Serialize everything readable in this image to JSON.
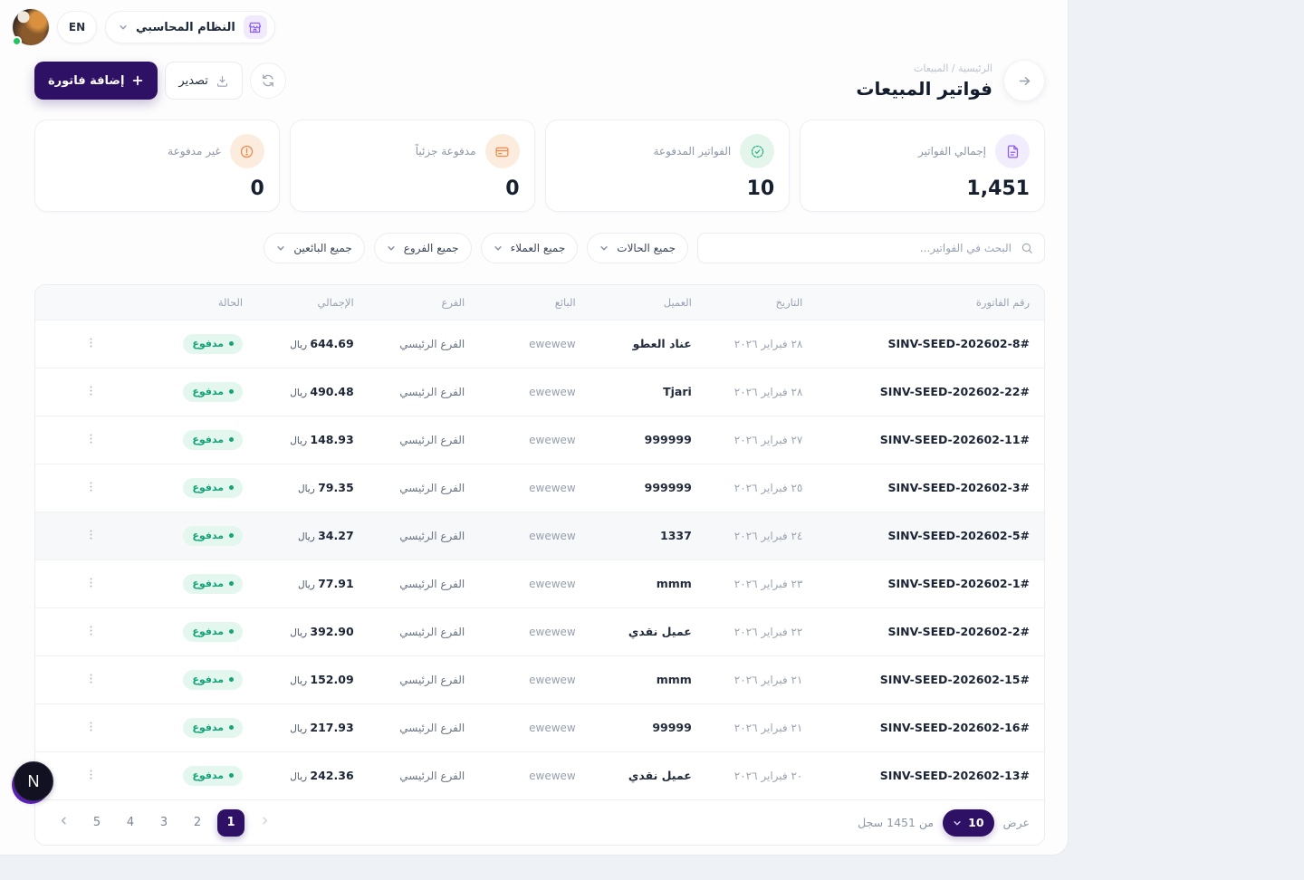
{
  "topbar": {
    "language": "EN",
    "system_name": "النظام المحاسبي"
  },
  "header": {
    "breadcrumb": "الرئيسية / المبيعات",
    "title": "فواتير المبيعات",
    "add_button": "إضافة فاتورة",
    "export_button": "تصدير"
  },
  "stats": [
    {
      "label": "إجمالي الفواتير",
      "value": "1,451",
      "icon": "invoice-icon",
      "icon_color": "#8b5cf6",
      "icon_bg": "#f2edfd"
    },
    {
      "label": "الفواتير المدفوعة",
      "value": "10",
      "icon": "check-circle-icon",
      "icon_color": "#2eb487",
      "icon_bg": "#e4f5ec"
    },
    {
      "label": "مدفوعة جزئياً",
      "value": "0",
      "icon": "credit-card-icon",
      "icon_color": "#ec8a4d",
      "icon_bg": "#fcecdd"
    },
    {
      "label": "غير مدفوعة",
      "value": "0",
      "icon": "alert-circle-icon",
      "icon_color": "#ec8a4d",
      "icon_bg": "#fcecdd"
    }
  ],
  "filters": {
    "search_placeholder": "البحث في الفواتير...",
    "dropdowns": [
      {
        "name": "filter-status",
        "label": "جميع الحالات"
      },
      {
        "name": "filter-customers",
        "label": "جميع العملاء"
      },
      {
        "name": "filter-branches",
        "label": "جميع الفروع"
      },
      {
        "name": "filter-sellers",
        "label": "جميع البائعين"
      }
    ]
  },
  "table": {
    "columns": [
      "رقم الفاتورة",
      "التاريخ",
      "العميل",
      "البائع",
      "الفرع",
      "الإجمالي",
      "الحالة"
    ],
    "currency": "ريال",
    "rows": [
      {
        "invoice": "#SINV-SEED-202602-8",
        "date": "٢٨ فبراير ٢٠٢٦",
        "customer": "عناد العطو",
        "seller": "ewewew",
        "branch": "الفرع الرئيسي",
        "total": "644.69",
        "status": "مدفوع",
        "highlight": false
      },
      {
        "invoice": "#SINV-SEED-202602-22",
        "date": "٢٨ فبراير ٢٠٢٦",
        "customer": "Tjari",
        "seller": "ewewew",
        "branch": "الفرع الرئيسي",
        "total": "490.48",
        "status": "مدفوع",
        "highlight": false
      },
      {
        "invoice": "#SINV-SEED-202602-11",
        "date": "٢٧ فبراير ٢٠٢٦",
        "customer": "999999",
        "seller": "ewewew",
        "branch": "الفرع الرئيسي",
        "total": "148.93",
        "status": "مدفوع",
        "highlight": false
      },
      {
        "invoice": "#SINV-SEED-202602-3",
        "date": "٢٥ فبراير ٢٠٢٦",
        "customer": "999999",
        "seller": "ewewew",
        "branch": "الفرع الرئيسي",
        "total": "79.35",
        "status": "مدفوع",
        "highlight": false
      },
      {
        "invoice": "#SINV-SEED-202602-5",
        "date": "٢٤ فبراير ٢٠٢٦",
        "customer": "1337",
        "seller": "ewewew",
        "branch": "الفرع الرئيسي",
        "total": "34.27",
        "status": "مدفوع",
        "highlight": true
      },
      {
        "invoice": "#SINV-SEED-202602-1",
        "date": "٢٣ فبراير ٢٠٢٦",
        "customer": "mmm",
        "seller": "ewewew",
        "branch": "الفرع الرئيسي",
        "total": "77.91",
        "status": "مدفوع",
        "highlight": false
      },
      {
        "invoice": "#SINV-SEED-202602-2",
        "date": "٢٢ فبراير ٢٠٢٦",
        "customer": "عميل نقدي",
        "seller": "ewewew",
        "branch": "الفرع الرئيسي",
        "total": "392.90",
        "status": "مدفوع",
        "highlight": false
      },
      {
        "invoice": "#SINV-SEED-202602-15",
        "date": "٢١ فبراير ٢٠٢٦",
        "customer": "mmm",
        "seller": "ewewew",
        "branch": "الفرع الرئيسي",
        "total": "152.09",
        "status": "مدفوع",
        "highlight": false
      },
      {
        "invoice": "#SINV-SEED-202602-16",
        "date": "٢١ فبراير ٢٠٢٦",
        "customer": "99999",
        "seller": "ewewew",
        "branch": "الفرع الرئيسي",
        "total": "217.93",
        "status": "مدفوع",
        "highlight": false
      },
      {
        "invoice": "#SINV-SEED-202602-13",
        "date": "٢٠ فبراير ٢٠٢٦",
        "customer": "عميل نقدي",
        "seller": "ewewew",
        "branch": "الفرع الرئيسي",
        "total": "242.36",
        "status": "مدفوع",
        "highlight": false
      }
    ]
  },
  "pagination": {
    "show_label": "عرض",
    "per_page": "10",
    "total_label": "من 1451 سجل",
    "pages": [
      "5",
      "4",
      "3",
      "2",
      "1"
    ],
    "active_page": "1"
  },
  "floating": {
    "dev_badge": "N"
  }
}
